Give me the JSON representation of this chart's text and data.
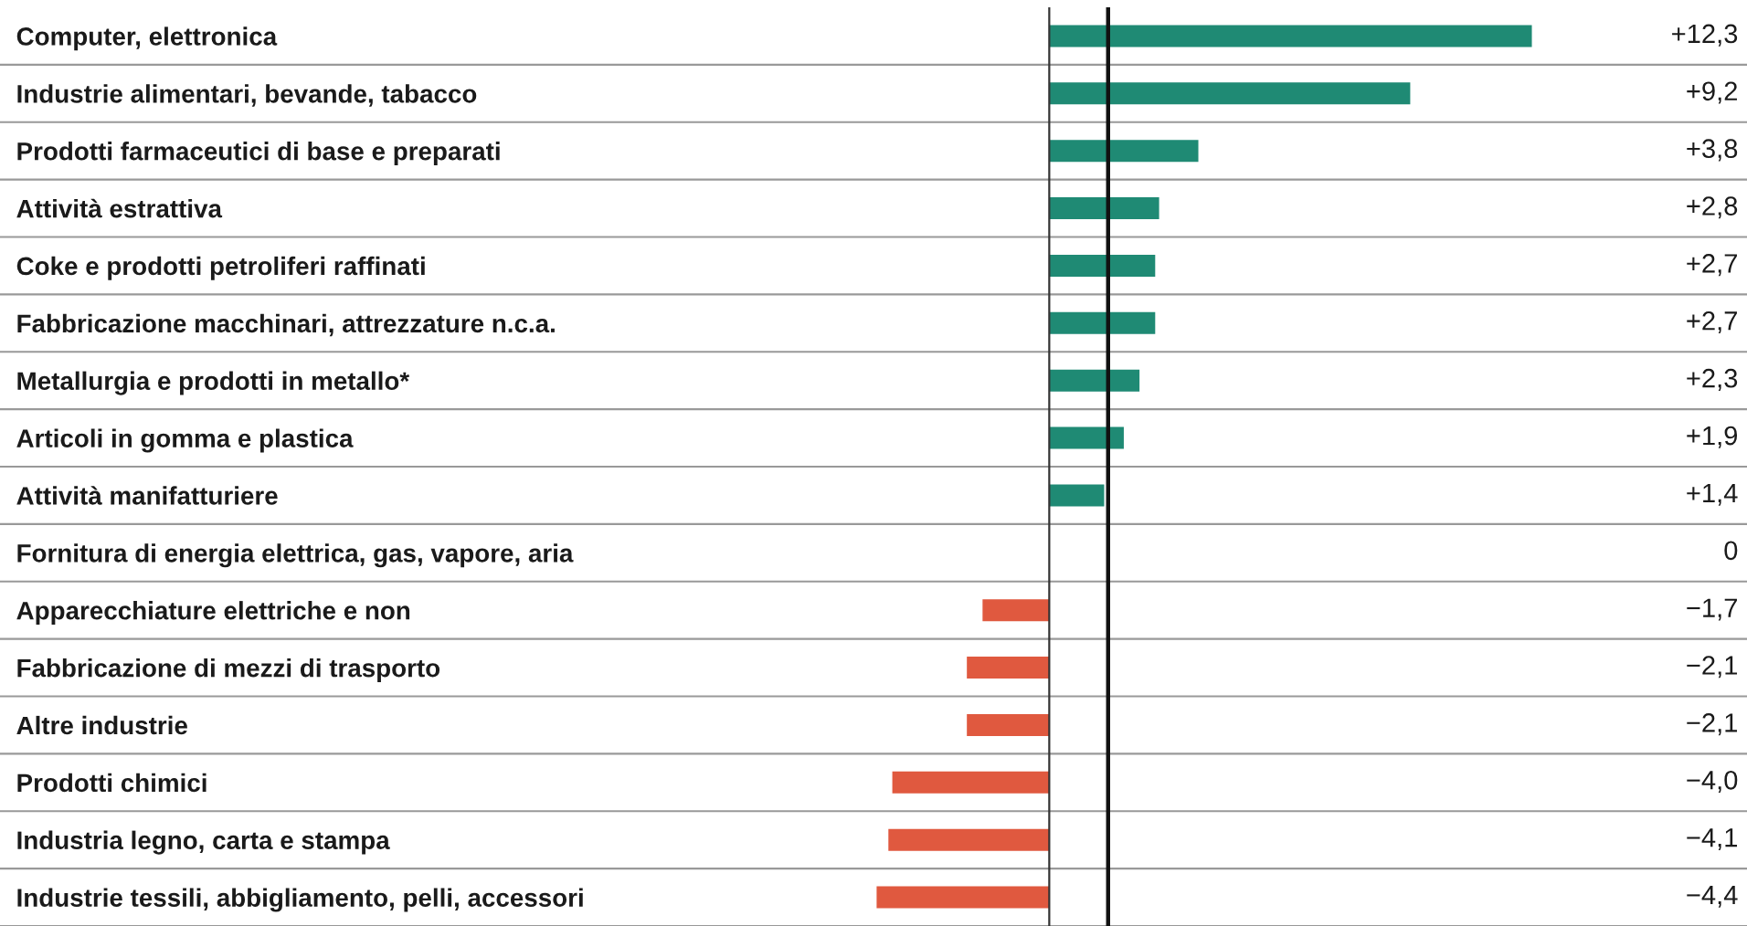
{
  "chart_data": {
    "type": "bar",
    "orientation": "horizontal",
    "categories": [
      "Computer, elettronica",
      "Industrie alimentari, bevande, tabacco",
      "Prodotti farmaceutici di base e preparati",
      "Attività estrattiva",
      "Coke e prodotti petroliferi raffinati",
      "Fabbricazione macchinari, attrezzature n.c.a.",
      "Metallurgia e prodotti in metallo*",
      "Articoli in gomma e plastica",
      "Attività manifatturiere",
      "Fornitura di energia elettrica, gas, vapore, aria",
      "Apparecchiature elettriche e non",
      "Fabbricazione di mezzi di trasporto",
      "Altre industrie",
      "Prodotti chimici",
      "Industria legno, carta e stampa",
      "Industrie tessili, abbigliamento, pelli, accessori"
    ],
    "values": [
      12.3,
      9.2,
      3.8,
      2.8,
      2.7,
      2.7,
      2.3,
      1.9,
      1.4,
      0,
      -1.7,
      -2.1,
      -2.1,
      -4.0,
      -4.1,
      -4.4
    ],
    "colors": [
      "#1f8a74",
      "#1f8a74",
      "#1f8a74",
      "#1f8a74",
      "#1f8a74",
      "#1f8a74",
      "#1f8a74",
      "#1f8a74",
      "#1f8a74",
      "#1f8a74",
      "#e0593f",
      "#e0593f",
      "#e0593f",
      "#e0593f",
      "#e0593f",
      "#e0593f"
    ],
    "value_labels": [
      "+12,3",
      "+9,2",
      "+3,8",
      "+2,8",
      "+2,7",
      "+2,7",
      "+2,3",
      "+1,9",
      "+1,4",
      "0",
      "−1,7",
      "−2,1",
      "−2,1",
      "−4,0",
      "−4,1",
      "−4,4"
    ],
    "ref_lines": [
      {
        "axis": "x",
        "value": 1.5,
        "color": "#111111"
      }
    ],
    "grid": false,
    "legend": false
  }
}
